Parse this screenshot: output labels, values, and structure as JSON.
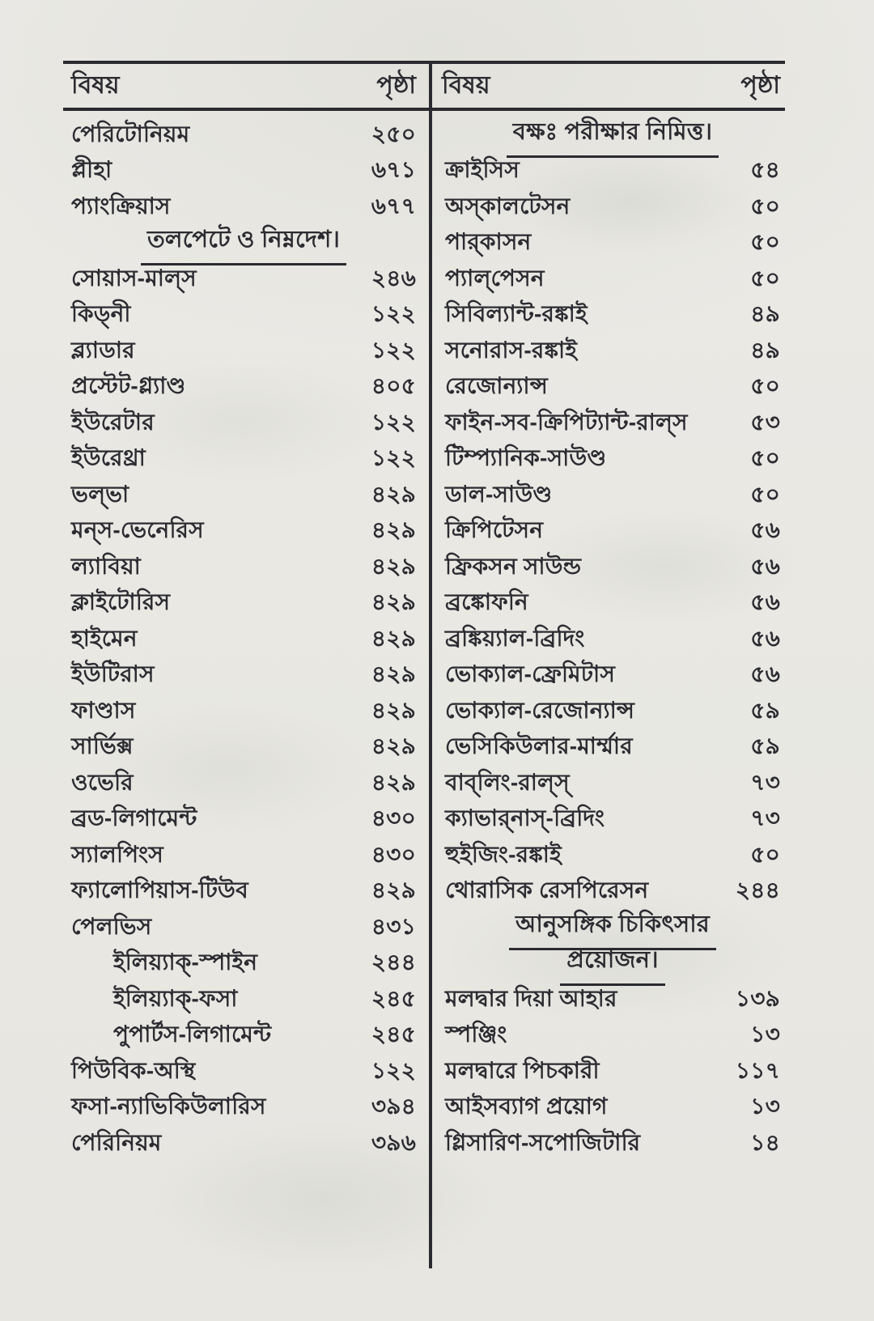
{
  "toc": {
    "columns": [
      {
        "header": {
          "subject": "বিষয়",
          "page": "পৃষ্ঠা"
        },
        "rows": [
          {
            "type": "item",
            "label": "পেরিটোনিয়ম",
            "page": "২৫০"
          },
          {
            "type": "item",
            "label": "প্লীহা",
            "page": "৬৭১"
          },
          {
            "type": "item",
            "label": "প্যাংক্রিয়াস",
            "page": "৬৭৭"
          },
          {
            "type": "section",
            "label": "তলপেটে ও নিম্নদেশ।"
          },
          {
            "type": "item",
            "label": "সোয়াস-মাল্‌স",
            "page": "২৪৬"
          },
          {
            "type": "item",
            "label": "কিড্‌নী",
            "page": "১২২"
          },
          {
            "type": "item",
            "label": "ব্ল্যাডার",
            "page": "১২২"
          },
          {
            "type": "item",
            "label": "প্রস্টেট-গ্ল্যাণ্ড",
            "page": "৪০৫"
          },
          {
            "type": "item",
            "label": "ইউরেটার",
            "page": "১২২"
          },
          {
            "type": "item",
            "label": "ইউরেথ্রা",
            "page": "১২২"
          },
          {
            "type": "item",
            "label": "ভল্‌ভা",
            "page": "৪২৯"
          },
          {
            "type": "item",
            "label": "মন্‌স-ভেনেরিস",
            "page": "৪২৯"
          },
          {
            "type": "item",
            "label": "ল্যাবিয়া",
            "page": "৪২৯"
          },
          {
            "type": "item",
            "label": "ক্লাইটোরিস",
            "page": "৪২৯"
          },
          {
            "type": "item",
            "label": "হাইমেন",
            "page": "৪২৯"
          },
          {
            "type": "item",
            "label": "ইউটিরাস",
            "page": "৪২৯"
          },
          {
            "type": "item",
            "label": "ফাণ্ডাস",
            "page": "৪২৯"
          },
          {
            "type": "item",
            "label": "সার্ভিক্স",
            "page": "৪২৯"
          },
          {
            "type": "item",
            "label": "ওভেরি",
            "page": "৪২৯"
          },
          {
            "type": "item",
            "label": "ব্রড-লিগামেন্ট",
            "page": "৪৩০"
          },
          {
            "type": "item",
            "label": "স্যালপিংস",
            "page": "৪৩০"
          },
          {
            "type": "item",
            "label": "ফ্যালোপিয়াস-টিউব",
            "page": "৪২৯"
          },
          {
            "type": "item",
            "label": "পেলভিস",
            "page": "৪৩১"
          },
          {
            "type": "item",
            "label": "ইলিয়্যাক্‌-স্পাইন",
            "page": "২৪৪",
            "indent": true
          },
          {
            "type": "item",
            "label": "ইলিয়্যাক্‌-ফসা",
            "page": "২৪৫",
            "indent": true
          },
          {
            "type": "item",
            "label": "পুপার্টস-লিগামেন্ট",
            "page": "২৪৫",
            "indent": true
          },
          {
            "type": "item",
            "label": "পিউবিক-অস্থি",
            "page": "১২২"
          },
          {
            "type": "item",
            "label": "ফসা-ন্যাভিকিউলারিস",
            "page": "৩৯৪"
          },
          {
            "type": "item",
            "label": "পেরিনিয়ম",
            "page": "৩৯৬"
          }
        ]
      },
      {
        "header": {
          "subject": "বিষয়",
          "page": "পৃষ্ঠা"
        },
        "rows": [
          {
            "type": "section",
            "label": "বক্ষঃ পরীক্ষার নিমিত্ত।"
          },
          {
            "type": "item",
            "label": "ক্রাইসিস",
            "page": "৫৪"
          },
          {
            "type": "item",
            "label": "অস্‌কালটেসন",
            "page": "৫০"
          },
          {
            "type": "item",
            "label": "পার্‌কাসন",
            "page": "৫০"
          },
          {
            "type": "item",
            "label": "প্যাল্‌পেসন",
            "page": "৫০"
          },
          {
            "type": "item",
            "label": "সিবিল্যান্ট-রঙ্কাই",
            "page": "৪৯"
          },
          {
            "type": "item",
            "label": "সনোরাস-রঙ্কাই",
            "page": "৪৯"
          },
          {
            "type": "item",
            "label": "রেজোন্যান্স",
            "page": "৫০"
          },
          {
            "type": "item",
            "label": "ফাইন-সব-ক্রিপিট্যান্ট-রাল্‌স",
            "page": "৫৩"
          },
          {
            "type": "item",
            "label": "টিম্প্যানিক-সাউণ্ড",
            "page": "৫০"
          },
          {
            "type": "item",
            "label": "ডাল-সাউণ্ড",
            "page": "৫০"
          },
          {
            "type": "item",
            "label": "ক্রিপিটেসন",
            "page": "৫৬"
          },
          {
            "type": "item",
            "label": "ফ্রিকসন সাউন্ড",
            "page": "৫৬"
          },
          {
            "type": "item",
            "label": "ব্রঙ্কোফনি",
            "page": "৫৬"
          },
          {
            "type": "item",
            "label": "ব্রঙ্কিয়্যাল-ব্রিদিং",
            "page": "৫৬"
          },
          {
            "type": "item",
            "label": "ভোক্যাল-ফ্রেমিটাস",
            "page": "৫৬"
          },
          {
            "type": "item",
            "label": "ভোক্যাল-রেজোন্যান্স",
            "page": "৫৯"
          },
          {
            "type": "item",
            "label": "ভেসিকিউলার-মার্ম্মার",
            "page": "৫৯"
          },
          {
            "type": "item",
            "label": "বাব্‌লিং-রাল্‌স্‌",
            "page": "৭৩"
          },
          {
            "type": "item",
            "label": "ক্যাভার্‌নাস্‌-ব্রিদিং",
            "page": "৭৩"
          },
          {
            "type": "item",
            "label": "হুইজিং-রঙ্কাই",
            "page": "৫০"
          },
          {
            "type": "item",
            "label": "থোরাসিক রেসপিরেসন",
            "page": "২৪৪"
          },
          {
            "type": "section",
            "label": "আনুসঙ্গিক চিকিৎসার"
          },
          {
            "type": "section",
            "label": "প্রয়োজন।"
          },
          {
            "type": "item",
            "label": "মলদ্বার দিয়া আহার",
            "page": "১৩৯"
          },
          {
            "type": "item",
            "label": "স্পঞ্জিং",
            "page": "১৩"
          },
          {
            "type": "item",
            "label": "মলদ্বারে পিচকারী",
            "page": "১১৭"
          },
          {
            "type": "item",
            "label": "আইসব্যাগ প্রয়োগ",
            "page": "১৩"
          },
          {
            "type": "item",
            "label": "গ্লিসারিণ-সপোজিটারি",
            "page": "১৪"
          }
        ]
      }
    ]
  }
}
